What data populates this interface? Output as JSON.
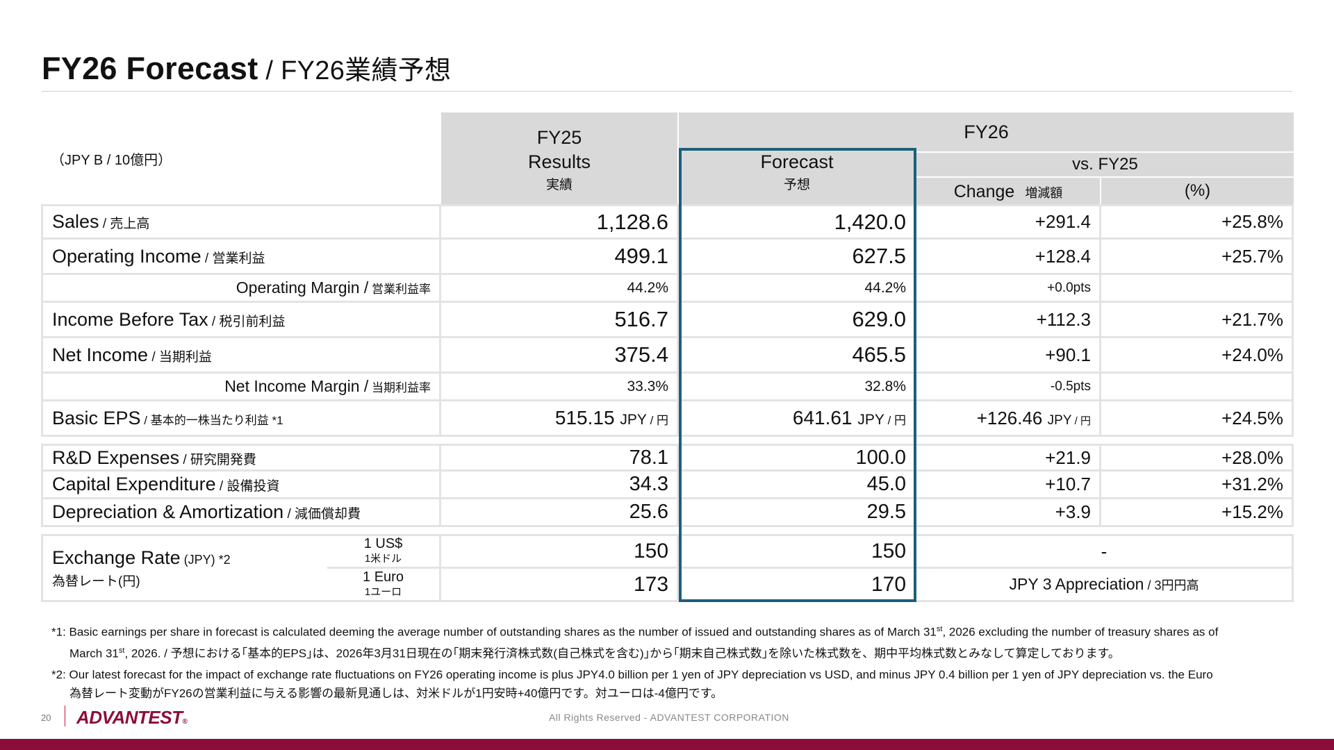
{
  "title": {
    "main": "FY26 Forecast",
    "sub": " / FY26業績予想"
  },
  "table": {
    "unit": "（JPY B / 10億円）",
    "header": {
      "fy25": "FY25",
      "fy26": "FY26",
      "results": "Results",
      "results_jp": "実績",
      "forecast": "Forecast",
      "forecast_jp": "予想",
      "vs_fy25": "vs. FY25",
      "change": "Change",
      "change_jp": "増減額",
      "pct": "(%)"
    },
    "rows": [
      {
        "label": "Sales",
        "label_jp": " / 売上高",
        "fy25": "1,128.6",
        "fy26": "1,420.0",
        "change": "+291.4",
        "pct": "+25.8%"
      },
      {
        "label": "Operating Income",
        "label_jp": " / 営業利益",
        "fy25": "499.1",
        "fy26": "627.5",
        "change": "+128.4",
        "pct": "+25.7%"
      },
      {
        "label": "Operating Margin /",
        "label_jp": " 営業利益率",
        "fy25": "44.2%",
        "fy26": "44.2%",
        "change": "+0.0pts",
        "pct": ""
      },
      {
        "label": "Income Before Tax",
        "label_jp": " / 税引前利益",
        "fy25": "516.7",
        "fy26": "629.0",
        "change": "+112.3",
        "pct": "+21.7%"
      },
      {
        "label": "Net Income",
        "label_jp": " / 当期利益",
        "fy25": "375.4",
        "fy26": "465.5",
        "change": "+90.1",
        "pct": "+24.0%"
      },
      {
        "label": "Net Income Margin /",
        "label_jp": " 当期利益率",
        "fy25": "33.3%",
        "fy26": "32.8%",
        "change": "-0.5pts",
        "pct": ""
      },
      {
        "label": "Basic EPS",
        "label_jp": " / 基本的一株当たり利益 *1",
        "fy25": "515.15",
        "fy26": "641.61",
        "change": "+126.46",
        "pct": "+24.5%",
        "unit": "JPY",
        "unit_jp": " / 円"
      }
    ],
    "rows2": [
      {
        "label": "R&D Expenses",
        "label_jp": " / 研究開発費",
        "fy25": "78.1",
        "fy26": "100.0",
        "change": "+21.9",
        "pct": "+28.0%"
      },
      {
        "label": "Capital Expenditure",
        "label_jp": " / 設備投資",
        "fy25": "34.3",
        "fy26": "45.0",
        "change": "+10.7",
        "pct": "+31.2%"
      },
      {
        "label": "Depreciation & Amortization",
        "label_jp": " / 減価償却費",
        "fy25": "25.6",
        "fy26": "29.5",
        "change": "+3.9",
        "pct": "+15.2%"
      }
    ],
    "fx": {
      "label": "Exchange Rate",
      "label_unit": " (JPY) *2",
      "label_jp": "為替レート(円)",
      "usd": "1 US$",
      "usd_jp": "1米ドル",
      "euro": "1 Euro",
      "euro_jp": "1ユーロ",
      "usd_fy25": "150",
      "usd_fy26": "150",
      "usd_change": "-",
      "euro_fy25": "173",
      "euro_fy26": "170",
      "euro_change": "JPY 3 Appreciation",
      "euro_change_jp": " / 3円円高"
    }
  },
  "notes": {
    "n1_a": "*1: Basic earnings per share in forecast is calculated deeming the average number of outstanding shares as the number of issued and outstanding shares as of March 31",
    "st": "st",
    "n1_b": ", 2026 excluding the number of treasury shares as of",
    "n1_c": "March 31",
    "n1_d": ", 2026. / 予想における｢基本的EPS｣は、2026年3月31日現在の｢期末発行済株式数(自己株式を含む)｣から｢期末自己株式数｣を除いた株式数を、期中平均株式数とみなして算定しております。",
    "n2_a": "*2: Our latest forecast for the impact of exchange rate fluctuations on FY26 operating income is plus JPY4.0 billion per 1 yen of JPY depreciation vs USD, and minus JPY 0.4 billion per 1 yen of JPY depreciation vs. the Euro",
    "n2_b": "為替レート変動がFY26の営業利益に与える影響の最新見通しは、対米ドルが1円安時+40億円です。対ユーロは-4億円です。"
  },
  "footer": {
    "page": "20",
    "logo": "ADVANTEST",
    "logo_mark": "®",
    "copyright": "All Rights Reserved - ADVANTEST CORPORATION"
  },
  "colors": {
    "accent": "#8b0d3a",
    "forecast_box": "#1b5f7a",
    "header_bg": "#d9d9d9"
  }
}
